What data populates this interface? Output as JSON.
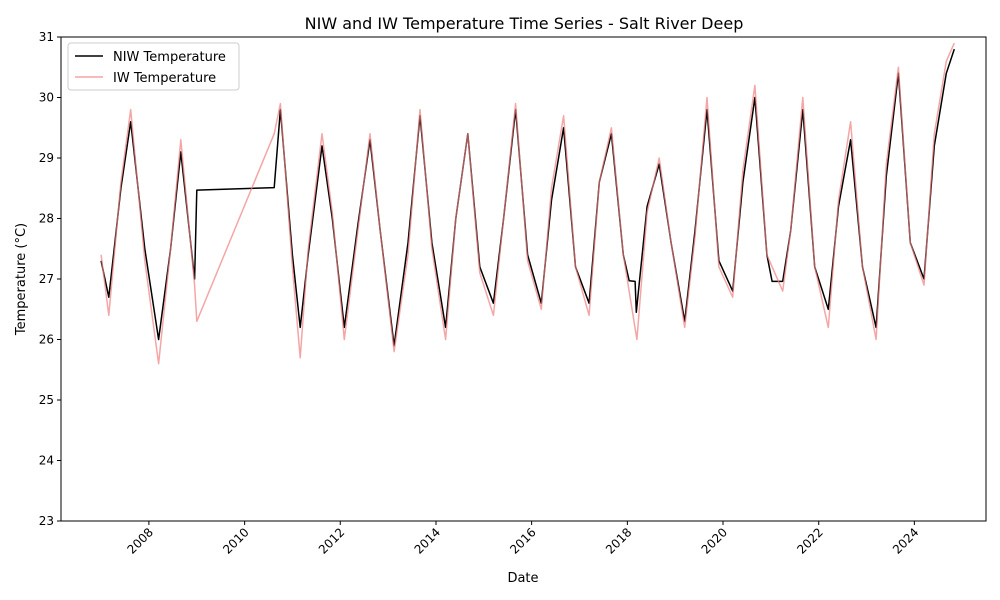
{
  "chart_data": {
    "type": "line",
    "title": "NIW and IW Temperature Time Series - Salt River Deep",
    "xlabel": "Date",
    "ylabel": "Temperature (°C)",
    "xlim": [
      "2006-03-01",
      "2025-07-01"
    ],
    "ylim": [
      23,
      31
    ],
    "xticks": [
      "2008",
      "2010",
      "2012",
      "2014",
      "2016",
      "2018",
      "2020",
      "2022",
      "2024"
    ],
    "yticks": [
      "23",
      "24",
      "25",
      "26",
      "27",
      "28",
      "29",
      "30",
      "31"
    ],
    "grid": false,
    "legend_position": "top-left",
    "series": [
      {
        "name": "NIW Temperature",
        "color": "#000000",
        "opacity": 1.0,
        "x": [
          "2007-01-01",
          "2007-03-01",
          "2007-06-01",
          "2007-08-15",
          "2007-12-01",
          "2008-03-15",
          "2008-06-15",
          "2008-09-01",
          "2008-12-15",
          "2009-01-01",
          "2010-08-15",
          "2010-10-01",
          "2011-01-01",
          "2011-03-01",
          "2011-05-01",
          "2011-08-15",
          "2011-11-01",
          "2012-02-01",
          "2012-05-15",
          "2012-08-15",
          "2012-11-01",
          "2013-02-15",
          "2013-06-01",
          "2013-09-01",
          "2013-12-01",
          "2014-03-15",
          "2014-06-01",
          "2014-09-01",
          "2014-12-01",
          "2015-03-15",
          "2015-06-01",
          "2015-09-01",
          "2015-12-01",
          "2016-03-15",
          "2016-06-01",
          "2016-09-01",
          "2016-12-01",
          "2017-03-15",
          "2017-06-01",
          "2017-09-01",
          "2017-12-01",
          "2018-01-15",
          "2018-03-01",
          "2018-03-10",
          "2018-06-01",
          "2018-09-01",
          "2018-12-01",
          "2019-03-15",
          "2019-06-01",
          "2019-09-01",
          "2019-12-01",
          "2020-03-15",
          "2020-06-01",
          "2020-09-01",
          "2020-12-01",
          "2021-01-10",
          "2021-04-01",
          "2021-06-01",
          "2021-09-01",
          "2021-12-01",
          "2022-03-15",
          "2022-06-01",
          "2022-09-01",
          "2022-12-01",
          "2023-03-15",
          "2023-06-01",
          "2023-09-01",
          "2023-12-01",
          "2024-03-15",
          "2024-06-01",
          "2024-09-01",
          "2024-11-01"
        ],
        "y": [
          27.3,
          26.7,
          28.5,
          29.6,
          27.5,
          26.0,
          27.5,
          29.1,
          27.0,
          28.47,
          28.51,
          29.8,
          27.4,
          26.2,
          27.4,
          29.2,
          28.0,
          26.2,
          27.9,
          29.3,
          27.8,
          25.9,
          27.6,
          29.7,
          27.6,
          26.2,
          28.0,
          29.4,
          27.2,
          26.6,
          28.0,
          29.8,
          27.4,
          26.6,
          28.3,
          29.5,
          27.2,
          26.6,
          28.6,
          29.4,
          27.4,
          26.97,
          26.96,
          26.45,
          28.2,
          28.9,
          27.6,
          26.3,
          27.8,
          29.8,
          27.3,
          26.8,
          28.6,
          30.0,
          27.4,
          26.96,
          26.96,
          27.8,
          29.8,
          27.2,
          26.5,
          28.2,
          29.3,
          27.2,
          26.2,
          28.7,
          30.4,
          27.6,
          27.0,
          29.2,
          30.4,
          30.8
        ]
      },
      {
        "name": "IW Temperature",
        "color": "#f08080",
        "opacity": 0.7,
        "x": [
          "2007-01-01",
          "2007-03-01",
          "2007-06-01",
          "2007-08-15",
          "2007-12-01",
          "2008-03-15",
          "2008-06-15",
          "2008-09-01",
          "2008-12-15",
          "2009-01-01",
          "2010-08-15",
          "2010-10-01",
          "2011-01-01",
          "2011-03-01",
          "2011-05-01",
          "2011-08-15",
          "2011-11-01",
          "2012-02-01",
          "2012-05-15",
          "2012-08-15",
          "2012-11-01",
          "2013-02-15",
          "2013-06-01",
          "2013-09-01",
          "2013-12-01",
          "2014-03-15",
          "2014-06-01",
          "2014-09-01",
          "2014-12-01",
          "2015-03-15",
          "2015-06-01",
          "2015-09-01",
          "2015-12-01",
          "2016-03-15",
          "2016-06-01",
          "2016-09-01",
          "2016-12-01",
          "2017-03-15",
          "2017-06-01",
          "2017-09-01",
          "2017-12-01",
          "2018-03-15",
          "2018-06-01",
          "2018-09-01",
          "2018-12-01",
          "2019-03-15",
          "2019-06-01",
          "2019-09-01",
          "2019-12-01",
          "2020-03-15",
          "2020-06-01",
          "2020-09-01",
          "2020-12-01",
          "2021-04-01",
          "2021-06-01",
          "2021-09-01",
          "2021-12-01",
          "2022-03-15",
          "2022-06-01",
          "2022-09-01",
          "2022-12-01",
          "2023-03-15",
          "2023-06-01",
          "2023-09-01",
          "2023-12-01",
          "2024-03-15",
          "2024-06-01",
          "2024-09-01",
          "2024-11-01"
        ],
        "y": [
          27.4,
          26.4,
          28.6,
          29.8,
          27.3,
          25.6,
          27.5,
          29.3,
          26.9,
          26.3,
          29.4,
          29.9,
          27.2,
          25.7,
          27.5,
          29.4,
          28.1,
          26.0,
          27.8,
          29.4,
          27.8,
          25.8,
          27.4,
          29.8,
          27.5,
          26.0,
          28.0,
          29.4,
          27.1,
          26.4,
          28.0,
          29.9,
          27.3,
          26.5,
          28.5,
          29.7,
          27.2,
          26.4,
          28.6,
          29.5,
          27.4,
          26.0,
          28.1,
          29.0,
          27.6,
          26.2,
          27.7,
          30.0,
          27.2,
          26.7,
          28.8,
          30.2,
          27.4,
          26.8,
          27.8,
          30.0,
          27.2,
          26.2,
          28.3,
          29.6,
          27.2,
          26.0,
          28.9,
          30.5,
          27.6,
          26.9,
          29.4,
          30.6,
          30.9
        ]
      }
    ]
  }
}
